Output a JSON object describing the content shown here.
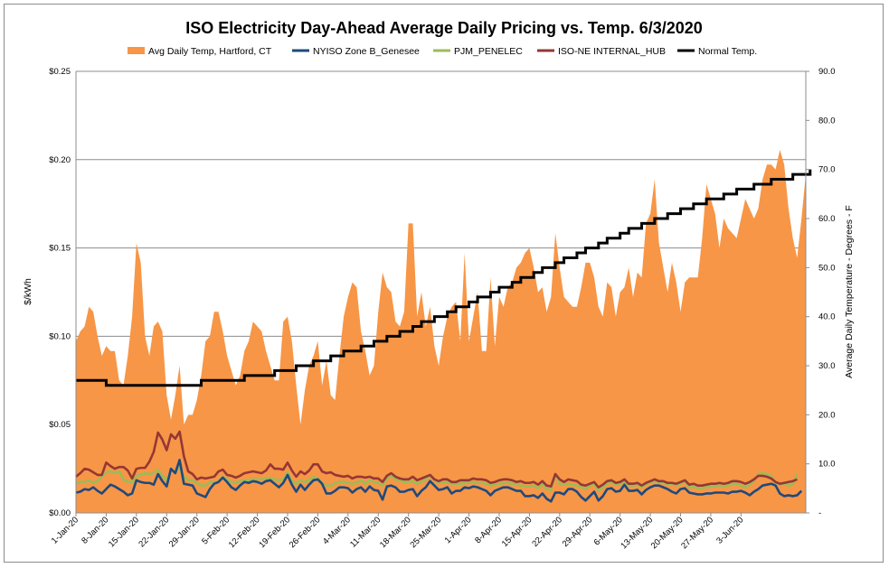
{
  "chart_data": {
    "type": "area+line",
    "title": "ISO Electricity Day-Ahead Average Daily Pricing vs. Temp. 6/3/2020",
    "ylabel": "$/kWh",
    "y2label": "Average Daily Temperature - Degrees - F",
    "ylim": [
      0,
      0.25
    ],
    "y2lim": [
      0,
      90
    ],
    "yticks": [
      "$0.00",
      "$0.05",
      "$0.10",
      "$0.15",
      "$0.20",
      "$0.25"
    ],
    "y2ticks": [
      "-",
      "10.0",
      "20.0",
      "30.0",
      "40.0",
      "50.0",
      "60.0",
      "70.0",
      "80.0",
      "90.0"
    ],
    "xticks": [
      "1-Jan-20",
      "8-Jan-20",
      "15-Jan-20",
      "22-Jan-20",
      "29-Jan-20",
      "5-Feb-20",
      "12-Feb-20",
      "19-Feb-20",
      "26-Feb-20",
      "4-Mar-20",
      "11-Mar-20",
      "18-Mar-20",
      "25-Mar-20",
      "1-Apr-20",
      "8-Apr-20",
      "15-Apr-20",
      "22-Apr-20",
      "29-Apr-20",
      "6-May-20",
      "13-May-20",
      "20-May-20",
      "27-May-20",
      "3-Jun-20"
    ],
    "gridlines": "horizontal",
    "legend_position": "top",
    "colors": {
      "temp": "#f79646",
      "nyiso": "#1f497d",
      "pjm": "#9bbb59",
      "isone": "#953735",
      "normal": "#000000"
    },
    "legend": [
      {
        "key": "temp",
        "label": "Avg Daily Temp, Hartford, CT",
        "kind": "area"
      },
      {
        "key": "nyiso",
        "label": "NYISO Zone B_Genesee",
        "kind": "line"
      },
      {
        "key": "pjm",
        "label": "PJM_PENELEC",
        "kind": "line"
      },
      {
        "key": "isone",
        "label": "ISO-NE INTERNAL_HUB",
        "kind": "line"
      },
      {
        "key": "normal",
        "label": "Normal Temp.",
        "kind": "line"
      }
    ],
    "series": [
      {
        "key": "temp",
        "axis": "y2",
        "values": [
          35,
          37,
          38,
          42,
          41,
          36,
          32,
          34,
          33,
          33,
          27,
          26,
          32,
          40,
          55,
          51,
          36,
          32,
          38,
          39,
          37,
          24,
          19,
          24,
          30,
          18,
          20,
          20,
          23,
          28,
          35,
          36,
          41,
          41,
          37,
          32,
          29,
          26,
          28,
          33,
          35,
          39,
          38,
          37,
          33,
          30,
          27,
          27,
          39,
          40,
          35,
          26,
          18,
          25,
          30,
          32,
          35,
          26,
          31,
          24,
          23,
          32,
          40,
          44,
          47,
          46,
          37,
          33,
          28,
          30,
          41,
          49,
          46,
          45,
          39,
          38,
          41,
          59,
          59,
          40,
          45,
          38,
          42,
          34,
          30,
          36,
          40,
          42,
          43,
          35,
          53,
          35,
          40,
          45,
          33,
          33,
          48,
          34,
          44,
          42,
          46,
          47,
          50,
          51,
          53,
          54,
          50,
          45,
          46,
          41,
          44,
          57,
          50,
          44,
          43,
          42,
          42,
          46,
          51,
          51,
          48,
          42,
          40,
          47,
          46,
          40,
          45,
          46,
          50,
          44,
          49,
          48,
          59,
          61,
          68,
          55,
          50,
          45,
          51,
          47,
          41,
          47,
          48,
          48,
          48,
          56,
          67,
          64,
          61,
          54,
          60,
          58,
          57,
          56,
          60,
          64,
          62,
          60,
          62,
          68,
          71,
          71,
          70,
          74,
          71,
          62,
          56,
          52,
          60,
          69
        ]
      },
      {
        "key": "nyiso",
        "axis": "y1",
        "values": [
          0.0115,
          0.012,
          0.0135,
          0.013,
          0.0145,
          0.0125,
          0.011,
          0.0135,
          0.016,
          0.015,
          0.0135,
          0.012,
          0.01,
          0.011,
          0.0185,
          0.0175,
          0.017,
          0.017,
          0.016,
          0.022,
          0.018,
          0.015,
          0.025,
          0.0225,
          0.03,
          0.0165,
          0.016,
          0.0155,
          0.011,
          0.01,
          0.009,
          0.0135,
          0.0165,
          0.0175,
          0.02,
          0.0175,
          0.0145,
          0.013,
          0.0155,
          0.0175,
          0.017,
          0.018,
          0.0175,
          0.0165,
          0.018,
          0.0185,
          0.0165,
          0.0145,
          0.017,
          0.0215,
          0.016,
          0.012,
          0.016,
          0.013,
          0.016,
          0.0185,
          0.019,
          0.0165,
          0.011,
          0.011,
          0.0125,
          0.0145,
          0.0145,
          0.014,
          0.0115,
          0.0135,
          0.0145,
          0.012,
          0.015,
          0.013,
          0.0125,
          0.0075,
          0.015,
          0.0155,
          0.0145,
          0.012,
          0.012,
          0.013,
          0.0135,
          0.0095,
          0.0125,
          0.0145,
          0.018,
          0.0155,
          0.013,
          0.0135,
          0.0145,
          0.011,
          0.0125,
          0.0125,
          0.0145,
          0.014,
          0.015,
          0.0145,
          0.0135,
          0.0125,
          0.01,
          0.0125,
          0.0135,
          0.0145,
          0.0145,
          0.0135,
          0.0125,
          0.0125,
          0.0095,
          0.0095,
          0.01,
          0.0085,
          0.011,
          0.008,
          0.0065,
          0.0115,
          0.0115,
          0.0105,
          0.0135,
          0.0135,
          0.012,
          0.009,
          0.007,
          0.0095,
          0.012,
          0.007,
          0.0095,
          0.0135,
          0.014,
          0.012,
          0.0125,
          0.016,
          0.0125,
          0.0125,
          0.013,
          0.0105,
          0.013,
          0.0145,
          0.0155,
          0.0155,
          0.0145,
          0.0135,
          0.012,
          0.011,
          0.0135,
          0.014,
          0.0115,
          0.011,
          0.0105,
          0.0105,
          0.011,
          0.011,
          0.0115,
          0.0115,
          0.0115,
          0.011,
          0.012,
          0.012,
          0.0125,
          0.0115,
          0.01,
          0.012,
          0.0135,
          0.0155,
          0.016,
          0.0165,
          0.0155,
          0.011,
          0.0095,
          0.01,
          0.0095,
          0.01,
          0.0125
        ]
      },
      {
        "key": "pjm",
        "axis": "y1",
        "values": [
          0.0165,
          0.0175,
          0.0175,
          0.0185,
          0.017,
          0.018,
          0.0205,
          0.023,
          0.0235,
          0.0225,
          0.0235,
          0.019,
          0.0175,
          0.0175,
          0.021,
          0.0215,
          0.0225,
          0.022,
          0.0225,
          0.0245,
          0.021,
          0.0185,
          0.024,
          0.0235,
          0.0255,
          0.0205,
          0.0185,
          0.0185,
          0.017,
          0.0155,
          0.0155,
          0.0175,
          0.0175,
          0.0175,
          0.0205,
          0.019,
          0.0175,
          0.017,
          0.018,
          0.0185,
          0.0185,
          0.019,
          0.019,
          0.019,
          0.0195,
          0.02,
          0.019,
          0.0185,
          0.019,
          0.023,
          0.018,
          0.0165,
          0.0185,
          0.0175,
          0.0185,
          0.0205,
          0.0195,
          0.017,
          0.0155,
          0.0155,
          0.017,
          0.0175,
          0.0175,
          0.017,
          0.0165,
          0.017,
          0.0185,
          0.0165,
          0.0185,
          0.0175,
          0.017,
          0.0155,
          0.0195,
          0.021,
          0.019,
          0.0185,
          0.0175,
          0.0175,
          0.018,
          0.0165,
          0.0175,
          0.019,
          0.021,
          0.0185,
          0.017,
          0.017,
          0.0175,
          0.0165,
          0.0165,
          0.0165,
          0.017,
          0.017,
          0.0175,
          0.017,
          0.017,
          0.0165,
          0.0155,
          0.016,
          0.0165,
          0.017,
          0.017,
          0.0165,
          0.0165,
          0.0155,
          0.015,
          0.015,
          0.0155,
          0.014,
          0.0165,
          0.0135,
          0.013,
          0.022,
          0.0165,
          0.016,
          0.0165,
          0.016,
          0.0155,
          0.0145,
          0.0135,
          0.0155,
          0.0165,
          0.0125,
          0.0145,
          0.0165,
          0.0175,
          0.016,
          0.016,
          0.018,
          0.0155,
          0.0155,
          0.016,
          0.0145,
          0.016,
          0.0175,
          0.018,
          0.0175,
          0.0175,
          0.016,
          0.0165,
          0.0155,
          0.0165,
          0.018,
          0.0145,
          0.015,
          0.014,
          0.014,
          0.0145,
          0.015,
          0.015,
          0.0155,
          0.015,
          0.0155,
          0.0165,
          0.0165,
          0.0155,
          0.0145,
          0.016,
          0.018,
          0.022,
          0.0225,
          0.022,
          0.021,
          0.0165,
          0.016,
          0.0165,
          0.0155,
          0.016,
          0.022
        ]
      },
      {
        "key": "isone",
        "axis": "y1",
        "values": [
          0.0205,
          0.0225,
          0.025,
          0.0245,
          0.023,
          0.0215,
          0.0215,
          0.0285,
          0.0265,
          0.025,
          0.026,
          0.026,
          0.024,
          0.0195,
          0.025,
          0.0255,
          0.0255,
          0.029,
          0.0345,
          0.0455,
          0.0415,
          0.0355,
          0.0445,
          0.042,
          0.046,
          0.032,
          0.0235,
          0.022,
          0.019,
          0.02,
          0.0195,
          0.02,
          0.0205,
          0.0235,
          0.0245,
          0.0215,
          0.021,
          0.02,
          0.021,
          0.0225,
          0.023,
          0.0235,
          0.023,
          0.0225,
          0.024,
          0.0275,
          0.025,
          0.025,
          0.0245,
          0.0285,
          0.024,
          0.0205,
          0.0235,
          0.022,
          0.024,
          0.0275,
          0.0275,
          0.0235,
          0.0225,
          0.023,
          0.0215,
          0.021,
          0.0205,
          0.021,
          0.0195,
          0.0205,
          0.0205,
          0.02,
          0.0205,
          0.0195,
          0.0195,
          0.0175,
          0.021,
          0.0225,
          0.0205,
          0.0195,
          0.019,
          0.019,
          0.0205,
          0.0185,
          0.0195,
          0.0205,
          0.0215,
          0.019,
          0.018,
          0.019,
          0.019,
          0.0175,
          0.0175,
          0.0185,
          0.0185,
          0.0185,
          0.0195,
          0.019,
          0.019,
          0.0185,
          0.017,
          0.0175,
          0.0185,
          0.019,
          0.019,
          0.0185,
          0.0175,
          0.018,
          0.017,
          0.017,
          0.0175,
          0.016,
          0.018,
          0.0155,
          0.015,
          0.022,
          0.019,
          0.0175,
          0.019,
          0.0185,
          0.018,
          0.016,
          0.0155,
          0.0165,
          0.0175,
          0.0145,
          0.016,
          0.018,
          0.0185,
          0.017,
          0.0175,
          0.019,
          0.0165,
          0.0165,
          0.017,
          0.0155,
          0.017,
          0.018,
          0.019,
          0.018,
          0.018,
          0.017,
          0.017,
          0.0165,
          0.0175,
          0.0185,
          0.016,
          0.0165,
          0.0155,
          0.0155,
          0.016,
          0.0165,
          0.0165,
          0.017,
          0.0165,
          0.017,
          0.018,
          0.018,
          0.0175,
          0.0165,
          0.0175,
          0.019,
          0.021,
          0.021,
          0.0205,
          0.0195,
          0.0175,
          0.0165,
          0.017,
          0.0175,
          0.018,
          0.019
        ]
      },
      {
        "key": "normal",
        "axis": "y2",
        "values": [
          27.0,
          27.0,
          26.9,
          26.9,
          26.7,
          26.6,
          26.5,
          26.4,
          26.4,
          26.4,
          26.3,
          26.3,
          26.3,
          26.2,
          26.2,
          26.2,
          26.2,
          26.2,
          26.2,
          26.2,
          26.2,
          26.2,
          26.2,
          26.2,
          26.2,
          26.2,
          26.3,
          26.4,
          26.4,
          26.5,
          26.6,
          26.6,
          26.7,
          26.8,
          26.9,
          27.0,
          27.1,
          27.2,
          27.3,
          27.5,
          27.6,
          27.8,
          27.9,
          28.1,
          28.2,
          28.4,
          28.6,
          28.8,
          29.0,
          29.2,
          29.4,
          29.6,
          29.8,
          30.1,
          30.3,
          30.6,
          30.8,
          31.1,
          31.3,
          31.6,
          31.9,
          32.2,
          32.5,
          32.8,
          33.1,
          33.4,
          33.7,
          34.0,
          34.3,
          34.6,
          35.0,
          35.3,
          35.6,
          36.0,
          36.3,
          36.7,
          37.0,
          37.4,
          37.8,
          38.1,
          38.5,
          38.9,
          39.3,
          39.6,
          40.0,
          40.4,
          40.8,
          41.2,
          41.6,
          42.0,
          42.4,
          42.8,
          43.2,
          43.6,
          44.0,
          44.4,
          44.8,
          45.2,
          45.6,
          46.0,
          46.4,
          46.8,
          47.2,
          47.6,
          48.0,
          48.4,
          48.8,
          49.2,
          49.6,
          50.0,
          50.4,
          50.8,
          51.2,
          51.6,
          52.0,
          52.4,
          52.8,
          53.2,
          53.6,
          54.0,
          54.4,
          54.8,
          55.2,
          55.6,
          56.0,
          56.4,
          56.7,
          57.1,
          57.5,
          57.9,
          58.2,
          58.6,
          58.9,
          59.3,
          59.6,
          60.0,
          60.3,
          60.7,
          61.0,
          61.3,
          61.6,
          62.0,
          62.3,
          62.6,
          62.9,
          63.2,
          63.5,
          63.8,
          64.1,
          64.4,
          64.7,
          65.0,
          65.3,
          65.5,
          65.8,
          66.1,
          66.3,
          66.6,
          66.8,
          67.1,
          67.3,
          67.6,
          67.8,
          68.0,
          68.2,
          68.4,
          68.7,
          68.9,
          69.1,
          69.3,
          69.5
        ]
      }
    ]
  }
}
